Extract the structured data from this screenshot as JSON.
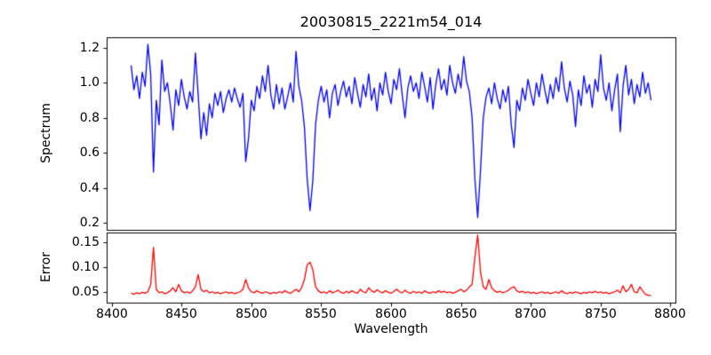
{
  "chart_data": {
    "type": "line",
    "title": "20030815_2221m54_014",
    "xlabel": "Wavelength",
    "xlim": [
      8396.5,
      8803.5
    ],
    "xticks": [
      {
        "v": 8400,
        "label": "8400"
      },
      {
        "v": 8450,
        "label": "8450"
      },
      {
        "v": 8500,
        "label": "8500"
      },
      {
        "v": 8550,
        "label": "8550"
      },
      {
        "v": 8600,
        "label": "8600"
      },
      {
        "v": 8650,
        "label": "8650"
      },
      {
        "v": 8700,
        "label": "8700"
      },
      {
        "v": 8750,
        "label": "8750"
      },
      {
        "v": 8800,
        "label": "8800"
      }
    ],
    "panels": [
      {
        "name": "spectrum",
        "ylabel": "Spectrum",
        "color": "#0000ff",
        "ylim": [
          0.16,
          1.26
        ],
        "yticks": [
          {
            "v": 0.2,
            "label": "0.2"
          },
          {
            "v": 0.4,
            "label": "0.4"
          },
          {
            "v": 0.6,
            "label": "0.6"
          },
          {
            "v": 0.8,
            "label": "0.8"
          },
          {
            "v": 1.0,
            "label": "1.0"
          },
          {
            "v": 1.2,
            "label": "1.2"
          }
        ],
        "x_start": 8414,
        "x_step": 2,
        "y": [
          1.1,
          0.96,
          1.04,
          0.91,
          1.06,
          0.98,
          1.22,
          1.05,
          0.49,
          0.9,
          0.76,
          1.13,
          0.95,
          1.0,
          0.88,
          0.73,
          0.96,
          0.87,
          1.02,
          0.92,
          0.85,
          0.95,
          0.89,
          1.17,
          0.93,
          0.68,
          0.83,
          0.7,
          0.88,
          0.8,
          0.94,
          0.87,
          0.95,
          0.83,
          0.91,
          0.96,
          0.89,
          0.97,
          0.91,
          0.86,
          0.94,
          0.55,
          0.68,
          0.9,
          0.84,
          0.98,
          0.91,
          1.04,
          0.95,
          1.1,
          0.93,
          0.85,
          0.99,
          0.88,
          0.97,
          0.85,
          0.92,
          1.0,
          0.89,
          1.18,
          0.98,
          0.9,
          0.75,
          0.45,
          0.27,
          0.44,
          0.76,
          0.9,
          0.98,
          0.89,
          0.96,
          0.8,
          0.94,
          0.99,
          0.87,
          0.95,
          1.01,
          0.92,
          0.98,
          0.88,
          1.03,
          0.94,
          0.86,
          0.99,
          0.92,
          1.05,
          0.9,
          0.97,
          0.84,
          1.0,
          0.93,
          1.06,
          0.95,
          0.88,
          1.02,
          0.96,
          1.08,
          0.93,
          0.8,
          0.97,
          1.04,
          0.95,
          1.0,
          0.91,
          1.06,
          0.98,
          0.89,
          1.03,
          0.85,
          0.99,
          1.08,
          0.96,
          1.02,
          0.93,
          1.1,
          1.0,
          0.94,
          1.05,
          0.97,
          1.15,
          1.01,
          0.95,
          0.8,
          0.45,
          0.23,
          0.5,
          0.8,
          0.92,
          0.97,
          0.88,
          1.0,
          0.91,
          0.85,
          0.96,
          0.89,
          0.98,
          0.76,
          0.63,
          0.9,
          0.84,
          0.97,
          0.9,
          1.02,
          0.94,
          0.87,
          1.0,
          0.92,
          1.05,
          0.96,
          0.88,
          0.99,
          0.91,
          1.03,
          0.95,
          1.12,
          0.97,
          0.89,
          1.01,
          0.93,
          0.75,
          0.96,
          0.87,
          1.04,
          0.94,
          0.99,
          0.86,
          1.02,
          0.95,
          1.16,
          0.97,
          0.9,
          1.0,
          0.84,
          0.96,
          1.05,
          0.72,
          0.98,
          1.1,
          0.93,
          1.02,
          0.88,
          0.99,
          0.92,
          1.06,
          0.94,
          1.0,
          0.9
        ]
      },
      {
        "name": "error",
        "ylabel": "Error",
        "color": "#ff0000",
        "ylim": [
          0.028,
          0.17
        ],
        "yticks": [
          {
            "v": 0.05,
            "label": "0.05"
          },
          {
            "v": 0.1,
            "label": "0.10"
          },
          {
            "v": 0.15,
            "label": "0.15"
          }
        ],
        "x_start": 8414,
        "x_step": 2,
        "y": [
          0.047,
          0.045,
          0.048,
          0.046,
          0.049,
          0.047,
          0.05,
          0.065,
          0.14,
          0.055,
          0.048,
          0.05,
          0.046,
          0.048,
          0.052,
          0.058,
          0.05,
          0.065,
          0.052,
          0.048,
          0.05,
          0.047,
          0.052,
          0.06,
          0.085,
          0.055,
          0.05,
          0.053,
          0.048,
          0.05,
          0.047,
          0.049,
          0.046,
          0.048,
          0.05,
          0.047,
          0.049,
          0.046,
          0.048,
          0.05,
          0.055,
          0.075,
          0.058,
          0.05,
          0.048,
          0.052,
          0.049,
          0.047,
          0.05,
          0.048,
          0.046,
          0.049,
          0.047,
          0.05,
          0.048,
          0.052,
          0.049,
          0.047,
          0.051,
          0.055,
          0.05,
          0.058,
          0.075,
          0.105,
          0.11,
          0.095,
          0.06,
          0.052,
          0.048,
          0.05,
          0.047,
          0.052,
          0.048,
          0.05,
          0.053,
          0.049,
          0.047,
          0.051,
          0.048,
          0.052,
          0.049,
          0.047,
          0.055,
          0.05,
          0.048,
          0.058,
          0.052,
          0.049,
          0.054,
          0.05,
          0.048,
          0.052,
          0.049,
          0.047,
          0.051,
          0.055,
          0.05,
          0.048,
          0.053,
          0.049,
          0.047,
          0.051,
          0.048,
          0.05,
          0.047,
          0.052,
          0.049,
          0.047,
          0.05,
          0.048,
          0.052,
          0.049,
          0.051,
          0.048,
          0.05,
          0.047,
          0.049,
          0.052,
          0.055,
          0.05,
          0.053,
          0.06,
          0.065,
          0.12,
          0.165,
          0.09,
          0.06,
          0.055,
          0.075,
          0.058,
          0.052,
          0.049,
          0.051,
          0.048,
          0.05,
          0.053,
          0.058,
          0.06,
          0.052,
          0.049,
          0.051,
          0.048,
          0.05,
          0.047,
          0.049,
          0.046,
          0.048,
          0.05,
          0.047,
          0.049,
          0.046,
          0.048,
          0.05,
          0.047,
          0.052,
          0.048,
          0.046,
          0.049,
          0.047,
          0.05,
          0.048,
          0.046,
          0.049,
          0.047,
          0.05,
          0.048,
          0.051,
          0.048,
          0.05,
          0.047,
          0.049,
          0.046,
          0.048,
          0.05,
          0.053,
          0.048,
          0.062,
          0.05,
          0.055,
          0.065,
          0.05,
          0.048,
          0.06,
          0.052,
          0.045,
          0.043,
          0.042
        ]
      }
    ]
  }
}
